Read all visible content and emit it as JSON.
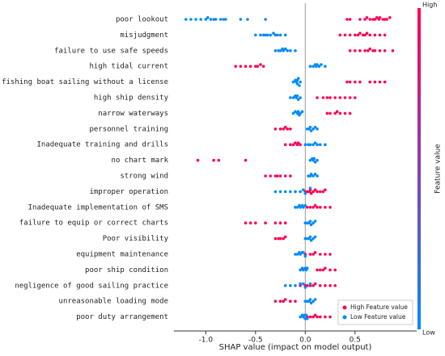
{
  "chart_data": {
    "type": "beeswarm",
    "xlabel": "SHAP value (impact on model output)",
    "categories": [
      "poor lookout",
      "misjudgment",
      "failure to use safe speeds",
      "high tidal current",
      "fishing boat sailing without a license",
      "high ship density",
      "narrow waterways",
      "personnel training",
      "Inadequate training and drills",
      "no chart mark",
      "strong wind",
      "improper operation",
      "Inadequate implementation of SMS",
      "failure to equip or correct charts",
      "Poor visibility",
      "equipment maintenance",
      "poor ship condition",
      "negligence of good sailing practice",
      "unreasonable loading mode",
      "poor duty arrangement"
    ],
    "series": [
      {
        "name": "High Feature value",
        "color": "#ff0052",
        "values": [
          [
            0.42,
            0.45,
            0.55,
            0.6,
            0.62,
            0.65,
            0.68,
            0.7,
            0.72,
            0.74,
            0.75,
            0.78,
            0.8,
            0.82,
            0.85
          ],
          [
            0.35,
            0.4,
            0.45,
            0.5,
            0.53,
            0.55,
            0.58,
            0.6,
            0.62,
            0.65,
            0.7,
            0.75,
            0.8
          ],
          [
            0.45,
            0.5,
            0.55,
            0.6,
            0.63,
            0.65,
            0.68,
            0.7,
            0.75,
            0.8,
            0.88
          ],
          [
            -0.7,
            -0.65,
            -0.6,
            -0.55,
            -0.5,
            -0.48,
            -0.45,
            -0.42
          ],
          [
            0.42,
            0.45,
            0.5,
            0.55,
            0.65,
            0.7,
            0.75,
            0.8
          ],
          [
            0.12,
            0.18,
            0.22,
            0.25,
            0.3,
            0.35,
            0.4,
            0.45,
            0.5
          ],
          [
            0.22,
            0.25,
            0.3,
            0.32,
            0.35,
            0.4,
            0.45
          ],
          [
            -0.3,
            -0.25,
            -0.22,
            -0.2,
            -0.18,
            -0.15
          ],
          [
            -0.2,
            -0.15,
            -0.12,
            -0.1,
            -0.08,
            -0.07,
            -0.05
          ],
          [
            -1.08,
            -0.92,
            -0.87,
            -0.6
          ],
          [
            -0.4,
            -0.35,
            -0.3,
            -0.28,
            -0.25,
            -0.2,
            -0.15
          ],
          [
            0.0,
            0.02,
            0.04,
            0.05,
            0.06,
            0.08,
            0.1,
            0.12,
            0.15,
            0.18,
            0.2
          ],
          [
            0.02,
            0.05,
            0.08,
            0.1,
            0.12,
            0.15,
            0.2,
            0.25
          ],
          [
            -0.6,
            -0.55,
            -0.5,
            -0.4,
            -0.3,
            -0.25,
            -0.2
          ],
          [
            -0.3,
            -0.27,
            -0.25,
            -0.22,
            -0.2
          ],
          [
            0.0,
            0.05,
            0.08,
            0.1,
            0.15,
            0.2,
            0.25
          ],
          [
            0.12,
            0.15,
            0.18,
            0.2,
            0.25,
            0.3
          ],
          [
            -0.05,
            0.0,
            0.02,
            0.05,
            0.08,
            0.1,
            0.15,
            0.2,
            0.25,
            0.3
          ],
          [
            -0.3,
            -0.25,
            -0.22,
            -0.2,
            -0.15,
            -0.1
          ],
          [
            0.02,
            0.05,
            0.08,
            0.1,
            0.12,
            0.15,
            0.2,
            0.25
          ]
        ]
      },
      {
        "name": "Low Feature value",
        "color": "#008bfb",
        "values": [
          [
            -1.2,
            -1.15,
            -1.1,
            -1.05,
            -1.0,
            -0.98,
            -0.95,
            -0.92,
            -0.9,
            -0.85,
            -0.82,
            -0.8,
            -0.65,
            -0.58,
            -0.4
          ],
          [
            -0.5,
            -0.45,
            -0.42,
            -0.4,
            -0.38,
            -0.35,
            -0.32,
            -0.3,
            -0.28,
            -0.25,
            -0.2
          ],
          [
            -0.3,
            -0.27,
            -0.25,
            -0.23,
            -0.22,
            -0.2,
            -0.18,
            -0.15,
            -0.1
          ],
          [
            0.05,
            0.08,
            0.1,
            0.11,
            0.12,
            0.14,
            0.16,
            0.2
          ],
          [
            -0.12,
            -0.1,
            -0.09,
            -0.08,
            -0.08,
            -0.07,
            -0.06,
            -0.05
          ],
          [
            -0.15,
            -0.12,
            -0.1,
            -0.09,
            -0.08,
            -0.07,
            -0.05
          ],
          [
            -0.12,
            -0.1,
            -0.08,
            -0.07,
            -0.06,
            -0.05,
            -0.03
          ],
          [
            0.02,
            0.04,
            0.05,
            0.06,
            0.08,
            0.1,
            0.12
          ],
          [
            0.0,
            0.03,
            0.05,
            0.08,
            0.1,
            0.12,
            0.15,
            0.2
          ],
          [
            0.05,
            0.07,
            0.08,
            0.09,
            0.1,
            0.12
          ],
          [
            0.03,
            0.05,
            0.06,
            0.08,
            0.1,
            0.12
          ],
          [
            -0.3,
            -0.25,
            -0.2,
            -0.15,
            -0.1,
            -0.05,
            -0.02,
            0.0,
            0.05
          ],
          [
            -0.1,
            -0.08,
            -0.06,
            -0.05,
            -0.03,
            -0.02,
            0.0
          ],
          [
            0.0,
            0.02,
            0.04,
            0.05,
            0.06,
            0.08,
            0.1
          ],
          [
            0.0,
            0.02,
            0.04,
            0.05,
            0.06,
            0.08,
            0.1
          ],
          [
            -0.1,
            -0.08,
            -0.06,
            -0.05,
            -0.03,
            -0.02,
            0.0
          ],
          [
            -0.05,
            -0.03,
            -0.02,
            0.0,
            0.01,
            0.02
          ],
          [
            -0.2,
            -0.15,
            -0.1,
            -0.05,
            -0.02,
            0.0,
            0.05
          ],
          [
            0.0,
            0.02,
            0.04,
            0.05,
            0.06,
            0.08,
            0.1
          ],
          [
            -0.05,
            -0.03,
            -0.02,
            -0.01,
            0.0,
            0.01,
            0.02
          ]
        ]
      }
    ],
    "xlim": [
      -1.32,
      1.12
    ],
    "xticks": [
      {
        "value": -1.0,
        "label": "-1.0"
      },
      {
        "value": -0.5,
        "label": "-0.5"
      },
      {
        "value": 0.0,
        "label": "0.0"
      },
      {
        "value": 0.5,
        "label": "0.5"
      }
    ],
    "colorbar": {
      "label": "Feature value",
      "high": "High",
      "low": "Low"
    },
    "legend": "lower right"
  }
}
